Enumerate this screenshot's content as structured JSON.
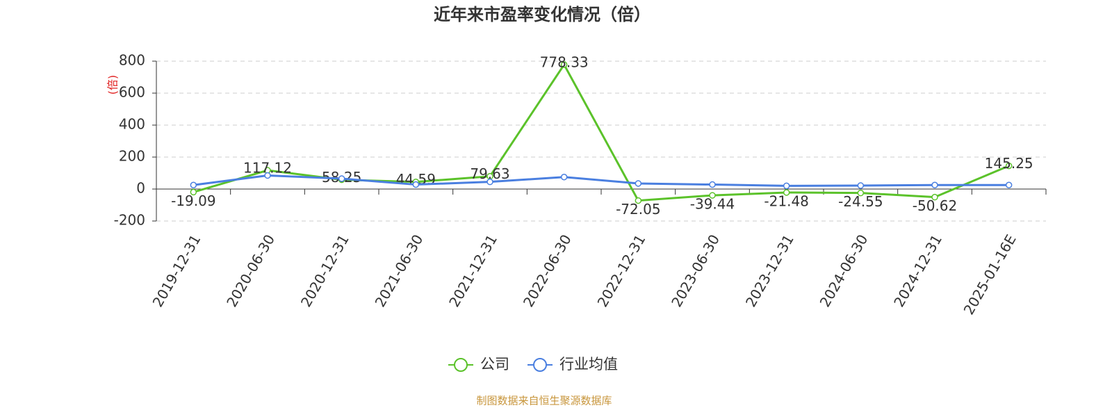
{
  "chart_data": {
    "type": "line",
    "title": "近年来市盈率变化情况（倍）",
    "y_label": "(倍)",
    "categories": [
      "2019-12-31",
      "2020-06-30",
      "2020-12-31",
      "2021-06-30",
      "2021-12-31",
      "2022-06-30",
      "2022-12-31",
      "2023-06-30",
      "2023-12-31",
      "2024-06-30",
      "2024-12-31",
      "2025-01-16E"
    ],
    "series": [
      {
        "name": "公司",
        "color": "#5bc22a",
        "values": [
          -19.09,
          117.12,
          58.25,
          44.59,
          79.63,
          778.33,
          -72.05,
          -39.44,
          -21.48,
          -24.55,
          -50.62,
          145.25
        ],
        "show_labels": true
      },
      {
        "name": "行业均值",
        "color": "#4a7fe0",
        "values": [
          25,
          85,
          65,
          28,
          45,
          75,
          35,
          28,
          20,
          22,
          25,
          25
        ],
        "show_labels": false
      }
    ],
    "ylim": [
      -200,
      800
    ],
    "yticks": [
      -200,
      0,
      200,
      400,
      600,
      800
    ],
    "grid": true,
    "source": "制图数据来自恒生聚源数据库"
  }
}
